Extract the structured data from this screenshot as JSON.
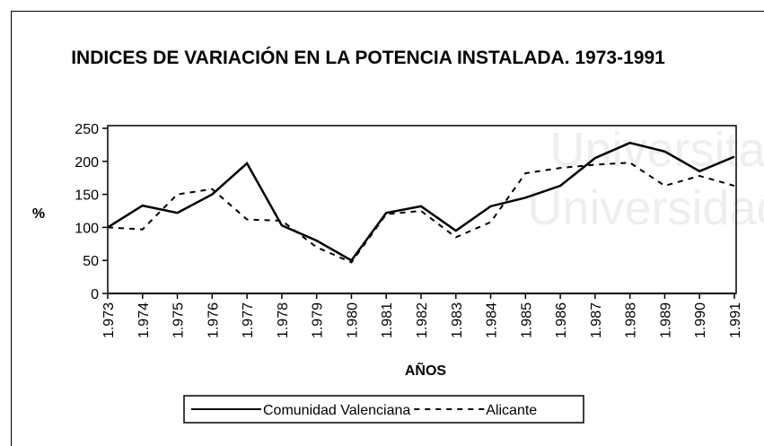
{
  "watermark": [
    "Universitat",
    "Universidad"
  ],
  "chart_data": {
    "type": "line",
    "title": "INDICES DE VARIACIÓN EN LA POTENCIA INSTALADA. 1973-1991",
    "x_label": "AÑOS",
    "y_label": "%",
    "categories": [
      "1.973",
      "1.974",
      "1.975",
      "1.976",
      "1.977",
      "1.978",
      "1.979",
      "1.980",
      "1.981",
      "1.982",
      "1.983",
      "1.984",
      "1.985",
      "1.986",
      "1.987",
      "1.988",
      "1.989",
      "1.990",
      "1.991"
    ],
    "series": [
      {
        "name": "Comunidad Valenciana",
        "color": "#000000",
        "line_style": "solid",
        "values": [
          100,
          133,
          122,
          150,
          197,
          103,
          80,
          50,
          122,
          132,
          95,
          132,
          145,
          163,
          205,
          228,
          215,
          185,
          207
        ]
      },
      {
        "name": "Alicante",
        "color": "#000000",
        "line_style": "dashed",
        "values": [
          100,
          97,
          150,
          158,
          112,
          110,
          70,
          47,
          120,
          125,
          85,
          108,
          182,
          190,
          195,
          198,
          163,
          178,
          163
        ]
      }
    ],
    "ylim": [
      0,
      250
    ],
    "yticks": [
      0,
      50,
      100,
      150,
      200,
      250
    ],
    "legend": "bottom",
    "grid": false
  }
}
